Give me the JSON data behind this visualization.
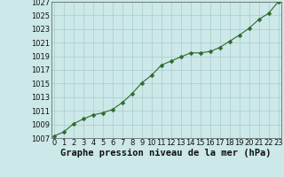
{
  "x": [
    0,
    1,
    2,
    3,
    4,
    5,
    6,
    7,
    8,
    9,
    10,
    11,
    12,
    13,
    14,
    15,
    16,
    17,
    18,
    19,
    20,
    21,
    22,
    23
  ],
  "y": [
    1007.3,
    1007.9,
    1009.1,
    1009.8,
    1010.4,
    1010.7,
    1011.2,
    1012.2,
    1013.5,
    1015.1,
    1016.2,
    1017.7,
    1018.3,
    1018.9,
    1019.5,
    1019.5,
    1019.7,
    1020.3,
    1021.2,
    1022.1,
    1023.1,
    1024.4,
    1025.3,
    1027.0
  ],
  "line_color": "#2d6a2d",
  "marker": "D",
  "marker_size": 2.5,
  "line_width": 0.8,
  "bg_color": "#cce8e8",
  "grid_color": "#aacccc",
  "xlabel": "Graphe pression niveau de la mer (hPa)",
  "xlabel_fontsize": 7.5,
  "tick_fontsize": 6,
  "ylim": [
    1007,
    1027
  ],
  "xlim_min": -0.3,
  "xlim_max": 23.3,
  "yticks": [
    1007,
    1009,
    1011,
    1013,
    1015,
    1017,
    1019,
    1021,
    1023,
    1025,
    1027
  ],
  "xticks": [
    0,
    1,
    2,
    3,
    4,
    5,
    6,
    7,
    8,
    9,
    10,
    11,
    12,
    13,
    14,
    15,
    16,
    17,
    18,
    19,
    20,
    21,
    22,
    23
  ]
}
